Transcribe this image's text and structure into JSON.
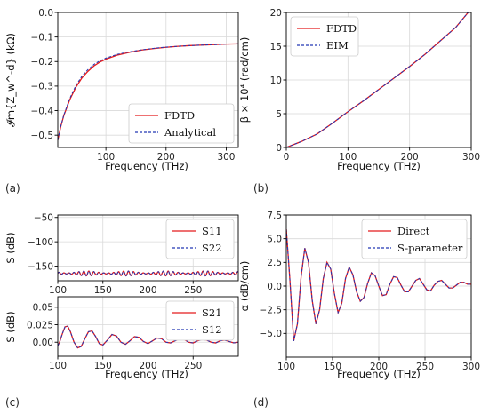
{
  "colors": {
    "red": "#e41a1c",
    "blue": "#2338b5"
  },
  "chart_data": [
    {
      "id": "a",
      "panel_label": "(a)",
      "type": "line",
      "xlabel": "Frequency (THz)",
      "ylabel": "𝓘m{Z_w^-d} (kΩ)",
      "xlim": [
        20,
        320
      ],
      "ylim": [
        -0.55,
        0.0
      ],
      "xticks": [
        100,
        200,
        300
      ],
      "yticks": [
        -0.5,
        -0.4,
        -0.3,
        -0.2,
        -0.1,
        0.0
      ],
      "ytick_labels": [
        "−0.5",
        "−0.4",
        "−0.3",
        "−0.2",
        "−0.1",
        "0.0"
      ],
      "grid": true,
      "legend_position": "lower-right",
      "x": [
        20,
        25,
        30,
        40,
        50,
        60,
        70,
        80,
        90,
        100,
        120,
        140,
        160,
        180,
        200,
        220,
        240,
        260,
        280,
        300,
        320
      ],
      "series": [
        {
          "name": "FDTD",
          "color": "#e41a1c",
          "dash": "solid",
          "values": [
            -0.52,
            -0.465,
            -0.42,
            -0.355,
            -0.305,
            -0.267,
            -0.24,
            -0.218,
            -0.202,
            -0.19,
            -0.173,
            -0.162,
            -0.153,
            -0.147,
            -0.142,
            -0.138,
            -0.135,
            -0.133,
            -0.131,
            -0.129,
            -0.128
          ]
        },
        {
          "name": "Analytical",
          "color": "#2338b5",
          "dash": "dashed",
          "values": [
            -0.52,
            -0.463,
            -0.418,
            -0.35,
            -0.298,
            -0.26,
            -0.233,
            -0.212,
            -0.197,
            -0.186,
            -0.17,
            -0.16,
            -0.152,
            -0.146,
            -0.141,
            -0.138,
            -0.135,
            -0.133,
            -0.131,
            -0.129,
            -0.128
          ]
        }
      ]
    },
    {
      "id": "b",
      "panel_label": "(b)",
      "type": "line",
      "xlabel": "Frequency (THz)",
      "ylabel": "β × 10⁴ (rad/cm)",
      "xlim": [
        0,
        300
      ],
      "ylim": [
        0,
        20
      ],
      "xticks": [
        0,
        100,
        200,
        300
      ],
      "yticks": [
        0,
        5,
        10,
        15,
        20
      ],
      "ytick_labels": [
        "0",
        "5",
        "10",
        "15",
        "20"
      ],
      "grid": true,
      "legend_position": "upper-left",
      "x": [
        0,
        25,
        50,
        75,
        100,
        125,
        150,
        175,
        200,
        225,
        250,
        275,
        295
      ],
      "series": [
        {
          "name": "FDTD",
          "color": "#e41a1c",
          "dash": "solid",
          "values": [
            0,
            0.9,
            2.0,
            3.6,
            5.3,
            6.9,
            8.6,
            10.3,
            12.0,
            13.8,
            15.8,
            17.8,
            20.0
          ]
        },
        {
          "name": "EIM",
          "color": "#2338b5",
          "dash": "dashed",
          "values": [
            0,
            0.9,
            2.0,
            3.6,
            5.3,
            6.9,
            8.6,
            10.3,
            12.0,
            13.8,
            15.8,
            17.8,
            20.0
          ]
        }
      ]
    },
    {
      "id": "c_top",
      "panel_label": "(c)",
      "type": "line",
      "xlabel": "",
      "ylabel": "S (dB)",
      "xlim": [
        100,
        300
      ],
      "ylim": [
        -180,
        -45
      ],
      "xticks": [
        100,
        150,
        200,
        250
      ],
      "yticks": [
        -50,
        -100,
        -150
      ],
      "ytick_labels": [
        "−50",
        "−100",
        "−150"
      ],
      "grid": true,
      "legend_position": "upper-right",
      "oscillation": {
        "center": -165,
        "amplitude": 5,
        "period_thz": 5.5
      },
      "series": [
        {
          "name": "S11",
          "color": "#e41a1c",
          "dash": "solid"
        },
        {
          "name": "S22",
          "color": "#2338b5",
          "dash": "dashed"
        }
      ]
    },
    {
      "id": "c_bottom",
      "type": "line",
      "xlabel": "Frequency (THz)",
      "ylabel": "S (dB)",
      "xlim": [
        100,
        300
      ],
      "ylim": [
        -0.02,
        0.065
      ],
      "xticks": [
        100,
        150,
        200,
        250
      ],
      "yticks": [
        0.0,
        0.025,
        0.05
      ],
      "ytick_labels": [
        "0.00",
        "0.025",
        "0.05"
      ],
      "grid": true,
      "legend_position": "upper-right",
      "x": [
        100,
        102,
        105,
        108,
        111,
        114,
        118,
        122,
        126,
        130,
        134,
        138,
        142,
        146,
        150,
        155,
        160,
        165,
        170,
        175,
        180,
        185,
        190,
        195,
        200,
        205,
        210,
        215,
        220,
        225,
        230,
        235,
        240,
        245,
        250,
        255,
        260,
        265,
        270,
        275,
        280,
        285,
        290,
        295,
        300
      ],
      "series": [
        {
          "name": "S21",
          "color": "#e41a1c",
          "dash": "solid",
          "values": [
            -0.005,
            0.0,
            0.012,
            0.022,
            0.023,
            0.015,
            0.0,
            -0.008,
            -0.006,
            0.005,
            0.015,
            0.016,
            0.008,
            -0.002,
            -0.004,
            0.003,
            0.011,
            0.009,
            0.0,
            -0.003,
            0.002,
            0.008,
            0.007,
            0.001,
            -0.002,
            0.002,
            0.006,
            0.005,
            0.0,
            -0.001,
            0.002,
            0.005,
            0.004,
            0.0,
            -0.001,
            0.002,
            0.004,
            0.003,
            0.0,
            -0.001,
            0.002,
            0.003,
            0.001,
            -0.001,
            0.0
          ]
        },
        {
          "name": "S12",
          "color": "#2338b5",
          "dash": "dashed",
          "values": [
            -0.005,
            0.0,
            0.012,
            0.022,
            0.023,
            0.015,
            0.0,
            -0.008,
            -0.006,
            0.005,
            0.015,
            0.016,
            0.008,
            -0.002,
            -0.004,
            0.003,
            0.011,
            0.009,
            0.0,
            -0.003,
            0.002,
            0.008,
            0.007,
            0.001,
            -0.002,
            0.002,
            0.006,
            0.005,
            0.0,
            -0.001,
            0.002,
            0.005,
            0.004,
            0.0,
            -0.001,
            0.002,
            0.004,
            0.003,
            0.0,
            -0.001,
            0.002,
            0.003,
            0.001,
            -0.001,
            0.0
          ]
        }
      ]
    },
    {
      "id": "d",
      "panel_label": "(d)",
      "type": "line",
      "xlabel": "Frequency (THz)",
      "ylabel": "α (dB/cm)",
      "xlim": [
        100,
        300
      ],
      "ylim": [
        -7.5,
        7.5
      ],
      "xticks": [
        100,
        150,
        200,
        250,
        300
      ],
      "yticks": [
        -5.0,
        -2.5,
        0.0,
        2.5,
        5.0,
        7.5
      ],
      "ytick_labels": [
        "−5.0",
        "−2.5",
        "0.0",
        "2.5",
        "5.0",
        "7.5"
      ],
      "grid": true,
      "legend_position": "upper-right",
      "x": [
        100,
        104,
        108,
        112,
        116,
        120,
        124,
        128,
        132,
        136,
        140,
        144,
        148,
        152,
        156,
        160,
        164,
        168,
        172,
        176,
        180,
        184,
        188,
        192,
        196,
        200,
        204,
        208,
        212,
        216,
        220,
        224,
        228,
        232,
        236,
        240,
        244,
        248,
        252,
        256,
        260,
        264,
        268,
        272,
        276,
        280,
        284,
        288,
        292,
        296,
        300
      ],
      "series": [
        {
          "name": "Direct",
          "color": "#e41a1c",
          "dash": "solid",
          "values": [
            6.0,
            0.5,
            -5.8,
            -4.0,
            1.0,
            4.0,
            2.5,
            -1.5,
            -4.0,
            -2.5,
            0.8,
            2.5,
            1.8,
            -0.8,
            -2.8,
            -1.8,
            0.8,
            2.0,
            1.2,
            -0.6,
            -1.6,
            -1.2,
            0.3,
            1.4,
            1.1,
            0.0,
            -1.0,
            -0.9,
            0.2,
            1.0,
            0.9,
            0.1,
            -0.6,
            -0.6,
            0.0,
            0.6,
            0.8,
            0.2,
            -0.4,
            -0.5,
            0.1,
            0.5,
            0.6,
            0.2,
            -0.2,
            -0.2,
            0.1,
            0.4,
            0.4,
            0.2,
            0.2
          ]
        },
        {
          "name": "S-parameter",
          "color": "#2338b5",
          "dash": "dashed",
          "values": [
            6.0,
            0.5,
            -5.8,
            -4.0,
            1.0,
            4.0,
            2.5,
            -1.5,
            -4.0,
            -2.5,
            0.8,
            2.5,
            1.8,
            -0.8,
            -2.8,
            -1.8,
            0.8,
            2.0,
            1.2,
            -0.6,
            -1.6,
            -1.2,
            0.3,
            1.4,
            1.1,
            0.0,
            -1.0,
            -0.9,
            0.2,
            1.0,
            0.9,
            0.1,
            -0.6,
            -0.6,
            0.0,
            0.6,
            0.8,
            0.2,
            -0.4,
            -0.5,
            0.1,
            0.5,
            0.6,
            0.2,
            -0.2,
            -0.2,
            0.1,
            0.4,
            0.4,
            0.2,
            0.2
          ]
        }
      ]
    }
  ]
}
